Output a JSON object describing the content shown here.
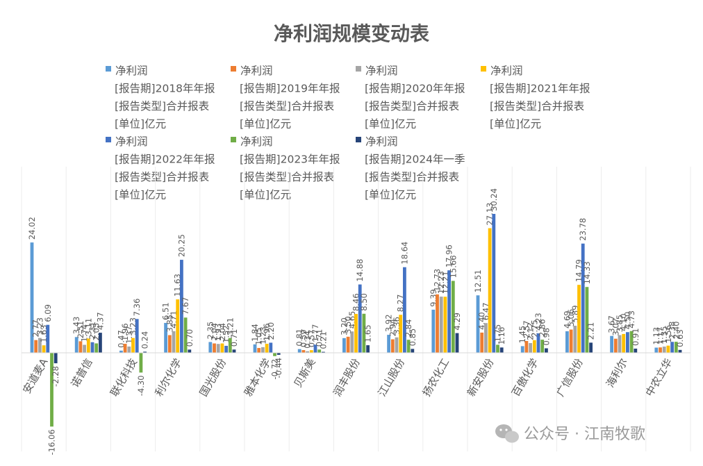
{
  "chart_data": {
    "type": "bar",
    "title": "净利润规模变动表",
    "categories": [
      "安道麦A",
      "诺普信",
      "联化科技",
      "利尔化学",
      "国光股份",
      "雅本化学",
      "贝斯美",
      "润丰股份",
      "江山股份",
      "扬农化工",
      "新安股份",
      "百傲化学",
      "广信股份",
      "海利尔",
      "中农立华"
    ],
    "series": [
      {
        "name": "净利润\n[报告期]2018年年报\n[报告类型]合并报表\n[单位]亿元",
        "color": "#5B9BD5",
        "values": [
          24.02,
          3.43,
          0.47,
          6.51,
          2.35,
          1.84,
          0.81,
          3.2,
          3.92,
          9.39,
          12.51,
          1.45,
          4.69,
          3.67,
          1.13
        ]
      },
      {
        "name": "净利润\n[报告期]2019年年报\n[报告类型]合并报表\n[单位]亿元",
        "color": "#ED7D31",
        "values": [
          2.77,
          2.51,
          1.96,
          3.85,
          2.04,
          1.05,
          0.59,
          3.5,
          2.94,
          12.73,
          4.4,
          2.57,
          5.06,
          3.07,
          1.17
        ]
      },
      {
        "name": "净利润\n[报告期]2020年年报\n[报告类型]合并报表\n[单位]亿元",
        "color": "#A5A5A5",
        "values": [
          3.23,
          1.74,
          1.37,
          4.71,
          1.93,
          1.23,
          0.34,
          4.65,
          3.36,
          12.23,
          6.47,
          2.12,
          5.89,
          3.85,
          1.35
        ]
      },
      {
        "name": "净利润\n[报告期]2021年年报\n[报告类型]合并报表\n[单位]亿元",
        "color": "#FFC000",
        "values": [
          1.63,
          3.11,
          3.23,
          11.63,
          2.04,
          1.96,
          0.57,
          8.46,
          8.27,
          12.21,
          27.13,
          2.75,
          14.79,
          4.1,
          1.56
        ]
      },
      {
        "name": "净利润\n[报告期]2022年年报\n[报告类型]合并报表\n[单位]亿元",
        "color": "#4472C4",
        "values": [
          6.09,
          2.31,
          7.36,
          20.25,
          1.52,
          2.2,
          1.77,
          14.88,
          18.64,
          17.96,
          30.24,
          4.23,
          23.78,
          4.5,
          2.38
        ]
      },
      {
        "name": "净利润\n[报告期]2023年年报\n[报告类型]合并报表\n[单位]亿元",
        "color": "#70AD47",
        "values": [
          -16.06,
          2.05,
          -4.3,
          7.67,
          3.21,
          -0.72,
          0.71,
          8.5,
          2.84,
          15.66,
          1.75,
          2.86,
          14.33,
          4.73,
          2.4
        ]
      },
      {
        "name": "净利润\n[报告期]2024年一季\n[报告类型]合并报表\n[单位]亿元",
        "color": "#264478",
        "values": [
          -2.28,
          4.37,
          0.24,
          0.7,
          0.71,
          -0.44,
          0.21,
          1.65,
          0.85,
          4.29,
          1.16,
          0.98,
          2.21,
          0.91,
          0.63
        ]
      }
    ],
    "ylim": [
      -17,
      30.5
    ],
    "grid": false,
    "legend": "top"
  },
  "watermark": {
    "icon": "wechat-icon",
    "text": "公众号 · 江南牧歌",
    "color": "#9a9a9a"
  }
}
